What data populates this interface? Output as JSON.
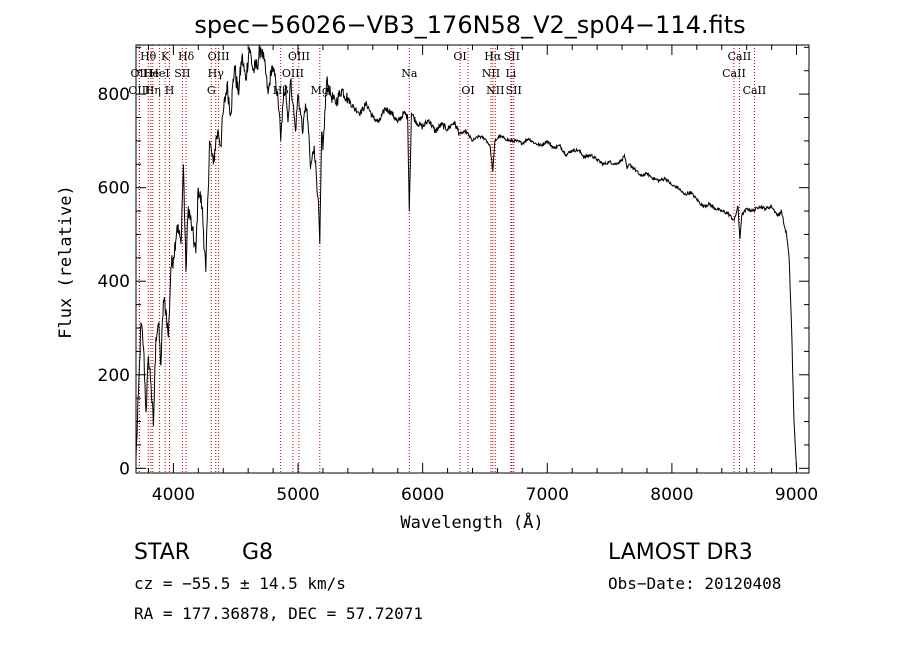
{
  "chart_data": {
    "type": "line",
    "title": "spec−56026−VB3_176N58_V2_sp04−114.fits",
    "xlabel": "Wavelength (Å)",
    "ylabel": "Flux (relative)",
    "xlim": [
      3700,
      9100
    ],
    "ylim": [
      -10,
      905
    ],
    "x_ticks": [
      4000,
      5000,
      6000,
      7000,
      8000,
      9000
    ],
    "x_tick_labels": [
      "4000",
      "5000",
      "6000",
      "7000",
      "8000",
      "9000"
    ],
    "y_ticks": [
      0,
      200,
      400,
      600,
      800
    ],
    "y_tick_labels": [
      "0",
      "200",
      "400",
      "600",
      "800"
    ],
    "grid": false,
    "line_color": "#000000",
    "marker_color": "#c00000",
    "series": [
      {
        "name": "flux",
        "x": [
          3700,
          3720,
          3740,
          3760,
          3780,
          3800,
          3820,
          3840,
          3860,
          3880,
          3900,
          3920,
          3940,
          3960,
          3980,
          4000,
          4030,
          4060,
          4080,
          4100,
          4120,
          4150,
          4180,
          4200,
          4230,
          4260,
          4290,
          4320,
          4340,
          4360,
          4380,
          4400,
          4430,
          4460,
          4490,
          4520,
          4550,
          4580,
          4610,
          4640,
          4670,
          4700,
          4730,
          4760,
          4790,
          4820,
          4850,
          4861,
          4880,
          4900,
          4920,
          4940,
          4960,
          4980,
          5000,
          5020,
          5040,
          5060,
          5080,
          5100,
          5130,
          5160,
          5175,
          5190,
          5200,
          5230,
          5260,
          5300,
          5350,
          5400,
          5450,
          5500,
          5550,
          5600,
          5650,
          5700,
          5750,
          5800,
          5850,
          5880,
          5893,
          5910,
          5950,
          6000,
          6050,
          6100,
          6150,
          6200,
          6250,
          6300,
          6350,
          6400,
          6450,
          6500,
          6540,
          6563,
          6580,
          6620,
          6660,
          6700,
          6750,
          6800,
          6850,
          6900,
          6950,
          7000,
          7050,
          7100,
          7150,
          7200,
          7250,
          7300,
          7350,
          7400,
          7450,
          7500,
          7550,
          7600,
          7620,
          7640,
          7660,
          7700,
          7750,
          7800,
          7850,
          7900,
          7950,
          8000,
          8050,
          8100,
          8150,
          8200,
          8250,
          8300,
          8350,
          8400,
          8450,
          8500,
          8530,
          8545,
          8560,
          8600,
          8650,
          8700,
          8750,
          8800,
          8850,
          8880,
          8900,
          8920,
          8940,
          8960,
          8980,
          9000
        ],
        "y": [
          20,
          160,
          310,
          260,
          120,
          240,
          180,
          90,
          280,
          310,
          220,
          360,
          340,
          280,
          430,
          450,
          520,
          480,
          650,
          420,
          560,
          510,
          460,
          600,
          560,
          420,
          700,
          650,
          700,
          720,
          690,
          760,
          820,
          760,
          860,
          800,
          880,
          830,
          900,
          850,
          860,
          900,
          870,
          800,
          860,
          830,
          760,
          700,
          780,
          820,
          740,
          830,
          780,
          720,
          800,
          760,
          720,
          780,
          740,
          640,
          690,
          580,
          480,
          720,
          680,
          830,
          800,
          780,
          810,
          790,
          770,
          760,
          780,
          750,
          740,
          770,
          760,
          740,
          760,
          750,
          550,
          760,
          740,
          730,
          745,
          720,
          735,
          725,
          740,
          715,
          720,
          700,
          710,
          705,
          690,
          635,
          700,
          710,
          705,
          700,
          700,
          695,
          705,
          695,
          690,
          700,
          685,
          690,
          670,
          680,
          680,
          665,
          670,
          660,
          650,
          655,
          650,
          660,
          670,
          640,
          650,
          640,
          625,
          630,
          620,
          615,
          620,
          605,
          600,
          585,
          590,
          575,
          560,
          565,
          555,
          550,
          545,
          530,
          560,
          490,
          540,
          555,
          550,
          560,
          555,
          560,
          540,
          550,
          520,
          500,
          450,
          300,
          100,
          0
        ]
      }
    ],
    "line_markers": [
      {
        "label": "Hθ",
        "x": 3798,
        "row": 0
      },
      {
        "label": "OII",
        "x": 3727,
        "row": 1
      },
      {
        "label": "OIII",
        "x": 3727,
        "row": 2
      },
      {
        "label": "He",
        "x": 3820,
        "row": 1
      },
      {
        "label": "Hη",
        "x": 3835,
        "row": 2
      },
      {
        "label": "K",
        "x": 3934,
        "row": 0
      },
      {
        "label": "HeI",
        "x": 3889,
        "row": 1
      },
      {
        "label": "H",
        "x": 3969,
        "row": 2
      },
      {
        "label": "SII",
        "x": 4072,
        "row": 1
      },
      {
        "label": "Hδ",
        "x": 4102,
        "row": 0
      },
      {
        "label": "OIII",
        "x": 4363,
        "row": 0
      },
      {
        "label": "Hγ",
        "x": 4340,
        "row": 1
      },
      {
        "label": "G",
        "x": 4304,
        "row": 2
      },
      {
        "label": "OIII",
        "x": 5007,
        "row": 0
      },
      {
        "label": "OIII",
        "x": 4959,
        "row": 1
      },
      {
        "label": "Hβ",
        "x": 4861,
        "row": 2
      },
      {
        "label": "Mg",
        "x": 5175,
        "row": 2
      },
      {
        "label": "Na",
        "x": 5893,
        "row": 1
      },
      {
        "label": "OI",
        "x": 6300,
        "row": 0
      },
      {
        "label": "OI",
        "x": 6364,
        "row": 2
      },
      {
        "label": "Hα",
        "x": 6563,
        "row": 0
      },
      {
        "label": "SII",
        "x": 6716,
        "row": 0
      },
      {
        "label": "NII",
        "x": 6548,
        "row": 1
      },
      {
        "label": "Li",
        "x": 6708,
        "row": 1
      },
      {
        "label": "NII",
        "x": 6583,
        "row": 2
      },
      {
        "label": "SII",
        "x": 6731,
        "row": 2
      },
      {
        "label": "CaII",
        "x": 8542,
        "row": 0
      },
      {
        "label": "CaII",
        "x": 8498,
        "row": 1
      },
      {
        "label": "CaII",
        "x": 8662,
        "row": 2
      }
    ]
  },
  "info": {
    "object_class": "STAR",
    "subclass": "G8",
    "survey": "LAMOST DR3",
    "cz": "cz = −55.5 ± 14.5 km/s",
    "obs_date": "Obs−Date: 20120408",
    "radec": "RA = 177.36878, DEC =  57.72071"
  }
}
